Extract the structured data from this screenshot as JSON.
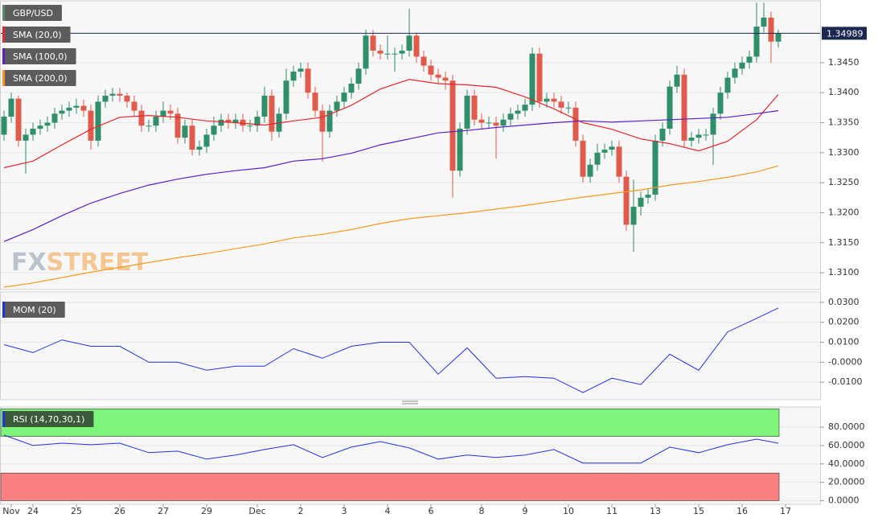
{
  "chart_data": [
    {
      "type": "candlestick",
      "name": "GBP/USD",
      "categories": [
        null,
        "Nov",
        null,
        null,
        "24",
        null,
        null,
        null,
        null,
        null,
        "25",
        null,
        null,
        null,
        null,
        null,
        "26",
        null,
        null,
        null,
        null,
        null,
        "27",
        null,
        null,
        null,
        null,
        null,
        "29",
        null,
        null,
        null,
        null,
        null,
        null,
        "Dec",
        null,
        null,
        null,
        null,
        null,
        "2",
        null,
        null,
        null,
        null,
        null,
        "3",
        null,
        null,
        null,
        null,
        null,
        "4",
        null,
        null,
        null,
        null,
        null,
        "6",
        null,
        null,
        null,
        null,
        null,
        null,
        "8",
        null,
        null,
        null,
        null,
        null,
        "9",
        null,
        null,
        null,
        null,
        null,
        "10",
        null,
        null,
        null,
        null,
        null,
        "11",
        null,
        null,
        null,
        null,
        null,
        "13",
        null,
        null,
        null,
        null,
        null,
        "15",
        null,
        null,
        null,
        null,
        null,
        "16",
        null,
        null,
        null,
        null,
        null,
        "17"
      ],
      "open": [
        1.333,
        1.336,
        1.339,
        1.332,
        1.333,
        1.334,
        1.3345,
        1.335,
        1.3365,
        1.337,
        1.3375,
        1.3378,
        1.337,
        1.332,
        1.3385,
        1.3395,
        1.3398,
        1.3395,
        1.3385,
        1.337,
        1.3345,
        1.3345,
        1.336,
        1.337,
        1.3365,
        1.3325,
        1.3345,
        1.3305,
        1.331,
        1.333,
        1.3345,
        1.3355,
        1.335,
        1.3355,
        1.3345,
        1.3345,
        1.336,
        1.3395,
        1.3335,
        1.3365,
        1.342,
        1.3435,
        1.344,
        1.34,
        1.337,
        1.3335,
        1.337,
        1.3385,
        1.34,
        1.3415,
        1.344,
        1.3495,
        1.347,
        1.3465,
        1.3465,
        1.3465,
        1.347,
        1.3495,
        1.346,
        1.3445,
        1.343,
        1.3425,
        1.342,
        1.327,
        1.334,
        1.3395,
        1.3355,
        1.335,
        1.335,
        1.3345,
        1.3355,
        1.3365,
        1.337,
        1.338,
        1.3465,
        1.3385,
        1.339,
        1.3385,
        1.3375,
        1.3375,
        1.332,
        1.326,
        1.328,
        1.33,
        1.3305,
        1.331,
        1.326,
        1.318,
        1.321,
        1.3225,
        1.323,
        1.332,
        1.334,
        1.341,
        1.343,
        1.332,
        1.3325,
        1.333,
        1.333,
        1.3365,
        1.34,
        1.3425,
        1.344,
        1.345,
        1.346,
        1.351,
        1.3525,
        1.3485,
        null
      ],
      "high": [
        1.337,
        1.34,
        1.3395,
        1.334,
        1.335,
        1.3355,
        1.336,
        1.3375,
        1.338,
        1.3385,
        1.339,
        1.3388,
        1.338,
        1.3395,
        1.3405,
        1.3408,
        1.3408,
        1.34,
        1.3395,
        1.338,
        1.3355,
        1.337,
        1.3385,
        1.338,
        1.3375,
        1.3355,
        1.3355,
        1.332,
        1.334,
        1.336,
        1.3365,
        1.3365,
        1.3365,
        1.3365,
        1.3355,
        1.337,
        1.341,
        1.3405,
        1.3375,
        1.344,
        1.3445,
        1.345,
        1.345,
        1.341,
        1.338,
        1.338,
        1.3395,
        1.341,
        1.3425,
        1.345,
        1.3505,
        1.3505,
        1.348,
        1.3495,
        1.3475,
        1.348,
        1.354,
        1.35,
        1.347,
        1.3455,
        1.344,
        1.3435,
        1.343,
        1.335,
        1.3405,
        1.3405,
        1.3365,
        1.336,
        1.336,
        1.3365,
        1.3375,
        1.338,
        1.339,
        1.3475,
        1.3475,
        1.34,
        1.34,
        1.3395,
        1.3385,
        1.3385,
        1.333,
        1.329,
        1.3315,
        1.3315,
        1.332,
        1.332,
        1.327,
        1.3255,
        1.3235,
        1.324,
        1.333,
        1.335,
        1.342,
        1.3445,
        1.344,
        1.3335,
        1.334,
        1.334,
        1.3375,
        1.341,
        1.3435,
        1.345,
        1.346,
        1.347,
        1.355,
        1.355,
        1.3535,
        1.3505,
        null
      ],
      "low": [
        1.332,
        1.335,
        1.331,
        1.3265,
        1.332,
        1.333,
        1.3335,
        1.334,
        1.3355,
        1.336,
        1.3365,
        1.336,
        1.3305,
        1.331,
        1.3375,
        1.3385,
        1.3385,
        1.3375,
        1.336,
        1.3335,
        1.3335,
        1.3335,
        1.335,
        1.3355,
        1.3315,
        1.3315,
        1.3295,
        1.3295,
        1.33,
        1.332,
        1.3335,
        1.334,
        1.334,
        1.3335,
        1.3335,
        1.3335,
        1.335,
        1.332,
        1.3325,
        1.3355,
        1.341,
        1.3425,
        1.339,
        1.336,
        1.3285,
        1.3325,
        1.336,
        1.3375,
        1.339,
        1.3405,
        1.343,
        1.346,
        1.3455,
        1.3455,
        1.3435,
        1.3455,
        1.346,
        1.345,
        1.3435,
        1.342,
        1.3415,
        1.3405,
        1.3225,
        1.326,
        1.333,
        1.3345,
        1.334,
        1.334,
        1.329,
        1.3335,
        1.3345,
        1.3355,
        1.336,
        1.337,
        1.3375,
        1.3375,
        1.3375,
        1.3365,
        1.3365,
        1.331,
        1.325,
        1.325,
        1.327,
        1.329,
        1.3295,
        1.325,
        1.317,
        1.3135,
        1.3195,
        1.3215,
        1.322,
        1.331,
        1.333,
        1.34,
        1.331,
        1.331,
        1.3315,
        1.332,
        1.328,
        1.3355,
        1.339,
        1.3415,
        1.343,
        1.344,
        1.345,
        1.35,
        1.345,
        1.3475,
        null
      ],
      "close": [
        1.336,
        1.339,
        1.332,
        1.333,
        1.334,
        1.3345,
        1.335,
        1.3365,
        1.337,
        1.3375,
        1.3378,
        1.337,
        1.332,
        1.3385,
        1.3395,
        1.3398,
        1.3395,
        1.3385,
        1.337,
        1.3345,
        1.3345,
        1.336,
        1.337,
        1.3365,
        1.3325,
        1.3345,
        1.3305,
        1.331,
        1.333,
        1.3345,
        1.3355,
        1.335,
        1.3355,
        1.3345,
        1.3345,
        1.336,
        1.3395,
        1.3335,
        1.3365,
        1.342,
        1.3435,
        1.344,
        1.34,
        1.337,
        1.3335,
        1.337,
        1.3385,
        1.34,
        1.3415,
        1.344,
        1.3495,
        1.347,
        1.3465,
        1.3465,
        1.3465,
        1.347,
        1.3495,
        1.346,
        1.3445,
        1.343,
        1.3425,
        1.342,
        1.327,
        1.334,
        1.3395,
        1.3355,
        1.335,
        1.335,
        1.3345,
        1.3355,
        1.3365,
        1.337,
        1.338,
        1.3465,
        1.3385,
        1.339,
        1.3385,
        1.3375,
        1.3375,
        1.332,
        1.326,
        1.328,
        1.33,
        1.3305,
        1.331,
        1.326,
        1.318,
        1.321,
        1.3225,
        1.323,
        1.332,
        1.334,
        1.341,
        1.343,
        1.332,
        1.3325,
        1.333,
        1.333,
        1.3365,
        1.34,
        1.3425,
        1.344,
        1.345,
        1.346,
        1.351,
        1.3525,
        1.3485,
        1.3499,
        null
      ],
      "up_color": "#2f8f68",
      "down_color": "#e05b4b",
      "color": "#5f8a6f",
      "x": [
        0,
        4,
        8,
        12,
        16,
        20,
        24,
        28,
        32,
        36,
        40,
        44,
        48,
        52,
        56,
        60,
        64,
        68,
        72,
        76,
        80,
        84,
        88,
        92,
        96,
        100,
        104,
        107
      ],
      "overlays": [
        {
          "name": "SMA (20,0)",
          "color": "#e3262b",
          "values": [
            1.3275,
            1.3286,
            1.3313,
            1.3339,
            1.3359,
            1.3362,
            1.3359,
            1.3353,
            1.335,
            1.3346,
            1.3353,
            1.3359,
            1.3379,
            1.3406,
            1.3422,
            1.3415,
            1.3413,
            1.3409,
            1.3393,
            1.3373,
            1.335,
            1.3339,
            1.3323,
            1.3315,
            1.3303,
            1.3319,
            1.3355,
            1.3397
          ]
        },
        {
          "name": "SMA (100,0)",
          "color": "#5b1fc4",
          "values": [
            1.3152,
            1.3172,
            1.3195,
            1.3216,
            1.3232,
            1.3246,
            1.3256,
            1.3264,
            1.327,
            1.3275,
            1.3286,
            1.329,
            1.3299,
            1.3313,
            1.3323,
            1.3333,
            1.3337,
            1.3342,
            1.3346,
            1.335,
            1.3353,
            1.3351,
            1.3353,
            1.3355,
            1.3357,
            1.3359,
            1.3365,
            1.337
          ]
        },
        {
          "name": "SMA (200,0)",
          "color": "#f39a1e",
          "values": [
            1.3076,
            1.3083,
            1.3092,
            1.3101,
            1.3109,
            1.3117,
            1.3125,
            1.3132,
            1.314,
            1.3148,
            1.3158,
            1.3164,
            1.3172,
            1.3182,
            1.319,
            1.3195,
            1.32,
            1.3206,
            1.3212,
            1.3219,
            1.3226,
            1.3232,
            1.3238,
            1.3246,
            1.3252,
            1.3259,
            1.3268,
            1.3278
          ]
        }
      ],
      "last_price": 1.34989,
      "last_price_color": "#1b2850",
      "ylim": [
        1.3072,
        1.3553
      ],
      "yticks": [
        {
          "value": 1.31,
          "label": "1.3100"
        },
        {
          "value": 1.315,
          "label": "1.3150"
        },
        {
          "value": 1.32,
          "label": "1.3200"
        },
        {
          "value": 1.325,
          "label": "1.3250"
        },
        {
          "value": 1.33,
          "label": "1.3300"
        },
        {
          "value": 1.335,
          "label": "1.3350"
        },
        {
          "value": 1.34,
          "label": "1.3400"
        },
        {
          "value": 1.345,
          "label": "1.3450"
        }
      ],
      "watermark": {
        "prefix": "FX",
        "suffix": "STREET"
      }
    },
    {
      "type": "line",
      "series": [
        {
          "name": "MOM (20)",
          "color": "#2233dd",
          "values": [
            0.0088,
            0.0048,
            0.0112,
            0.008,
            0.008,
            0.0,
            0.0,
            -0.004,
            -0.002,
            -0.002,
            0.0068,
            0.002,
            0.008,
            0.01,
            0.01,
            -0.006,
            0.0072,
            -0.008,
            -0.0072,
            -0.008,
            -0.0152,
            -0.008,
            -0.0112,
            0.004,
            -0.004,
            0.0152,
            0.022,
            0.0272
          ]
        }
      ],
      "x": [
        0,
        4,
        8,
        12,
        16,
        20,
        24,
        28,
        32,
        36,
        40,
        44,
        48,
        52,
        56,
        60,
        64,
        68,
        72,
        76,
        80,
        84,
        88,
        92,
        96,
        100,
        104,
        107
      ],
      "ylim": [
        -0.0188,
        0.0352
      ],
      "yticks": [
        {
          "value": 0.03,
          "label": "0.0300"
        },
        {
          "value": 0.02,
          "label": "0.0200"
        },
        {
          "value": 0.01,
          "label": "0.0100"
        },
        {
          "value": 0,
          "label": "-0.0000"
        },
        {
          "value": -0.01,
          "label": "-0.0100"
        }
      ]
    },
    {
      "type": "line",
      "series": [
        {
          "name": "RSI (14,70,30,1)",
          "color": "#2233dd",
          "values": [
            71.3,
            60.0,
            62.6,
            60.9,
            62.6,
            52.2,
            53.9,
            45.2,
            49.6,
            55.7,
            60.9,
            47.0,
            58.3,
            64.3,
            57.4,
            45.2,
            49.6,
            47.0,
            49.6,
            55.7,
            40.9,
            40.9,
            40.9,
            58.3,
            52.2,
            60.9,
            67.0,
            62.6
          ]
        }
      ],
      "x": [
        0,
        4,
        8,
        12,
        16,
        20,
        24,
        28,
        32,
        36,
        40,
        44,
        48,
        52,
        56,
        60,
        64,
        68,
        72,
        76,
        80,
        84,
        88,
        92,
        96,
        100,
        104,
        107
      ],
      "bands": [
        {
          "from": 70,
          "to": 100,
          "color": "#7cf57a"
        },
        {
          "from": 0,
          "to": 30,
          "color": "#f98181"
        }
      ],
      "ylim": [
        -4,
        102
      ],
      "yticks": [
        {
          "value": 80,
          "label": "80.0000"
        },
        {
          "value": 60,
          "label": "60.0000"
        },
        {
          "value": 40,
          "label": "40.0000"
        },
        {
          "value": 20,
          "label": "20.0000"
        },
        {
          "value": 0,
          "label": "0.0000"
        }
      ]
    }
  ]
}
